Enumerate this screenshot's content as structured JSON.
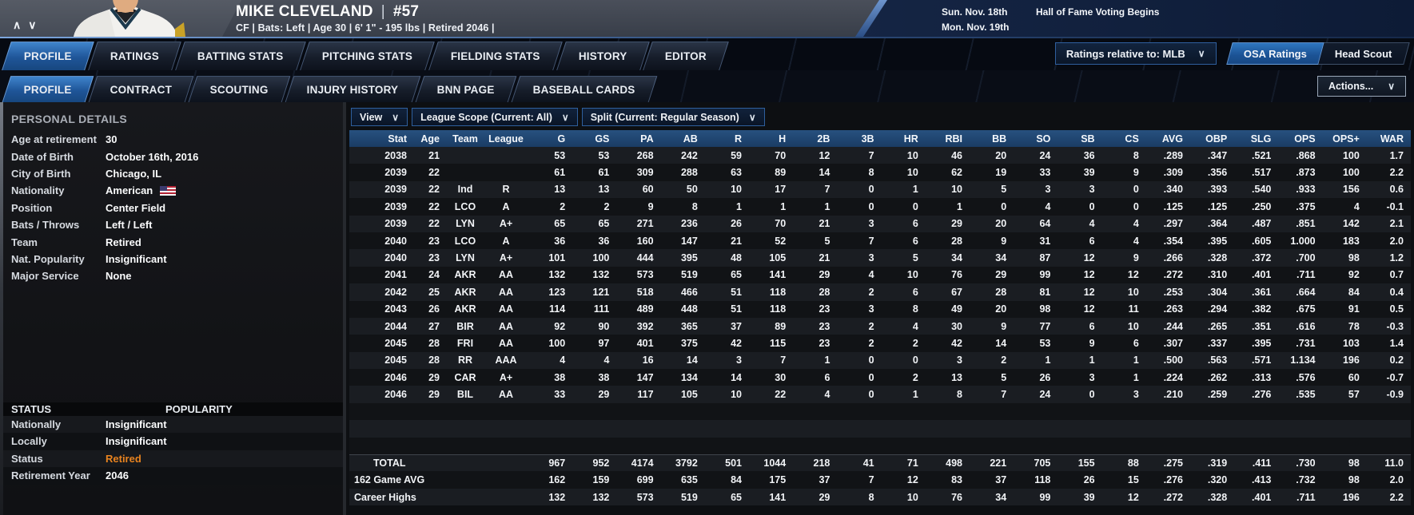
{
  "ui": {
    "chevron": "∨",
    "nav_up": "∧",
    "nav_down": "∨"
  },
  "colors": {
    "accent_blue": "#1f5598",
    "table_header_blue": "#1d3f6a",
    "status_orange": "#e8831f",
    "header_gray": "#4a4f5a",
    "header_navy": "#152544"
  },
  "header": {
    "player_name": "MIKE CLEVELAND",
    "separator": "|",
    "number": "#57",
    "subtitle": "CF | Bats: Left  |  Age 30  |  6' 1\" - 195 lbs  |  Retired 2046  |",
    "dates": [
      {
        "date": "Sun. Nov. 18th",
        "event": "Hall of Fame Voting Begins"
      },
      {
        "date": "Mon. Nov. 19th",
        "event": ""
      }
    ]
  },
  "main_tabs": {
    "items": [
      "PROFILE",
      "RATINGS",
      "BATTING STATS",
      "PITCHING STATS",
      "FIELDING STATS",
      "HISTORY",
      "EDITOR"
    ],
    "active": "PROFILE"
  },
  "header_controls": {
    "ratings_relative": "Ratings relative to: MLB",
    "osa_ratings": "OSA Ratings",
    "head_scout": "Head Scout"
  },
  "sub_tabs": {
    "items": [
      "PROFILE",
      "CONTRACT",
      "SCOUTING",
      "INJURY HISTORY",
      "BNN PAGE",
      "BASEBALL CARDS"
    ],
    "active": "PROFILE",
    "actions_label": "Actions..."
  },
  "personal_details": {
    "title": "PERSONAL DETAILS",
    "rows": [
      {
        "label": "Age at retirement",
        "value": "30"
      },
      {
        "label": "Date of Birth",
        "value": "October 16th, 2016"
      },
      {
        "label": "City of Birth",
        "value": "Chicago, IL"
      },
      {
        "label": "Nationality",
        "value": "American",
        "flag": "us-flag"
      },
      {
        "label": "Position",
        "value": "Center Field"
      },
      {
        "label": "Bats / Throws",
        "value": "Left / Left"
      },
      {
        "label": "Team",
        "value": "Retired"
      },
      {
        "label": "Nat. Popularity",
        "value": "Insignificant"
      },
      {
        "label": "Major Service",
        "value": "None"
      }
    ]
  },
  "status_section": {
    "title_left": "STATUS",
    "title_right": "POPULARITY",
    "rows": [
      {
        "label": "Nationally",
        "value": "Insignificant",
        "highlight": false
      },
      {
        "label": "Locally",
        "value": "Insignificant",
        "highlight": false
      },
      {
        "label": "Status",
        "value": "Retired",
        "highlight": true
      },
      {
        "label": "Retirement Year",
        "value": "2046",
        "highlight": false
      }
    ]
  },
  "filters": {
    "view": "View",
    "league_scope": "League Scope  (Current: All)",
    "split": "Split  (Current: Regular Season)"
  },
  "stats_table": {
    "columns": [
      "Stat",
      "Age",
      "Team",
      "League",
      "G",
      "GS",
      "PA",
      "AB",
      "R",
      "H",
      "2B",
      "3B",
      "HR",
      "RBI",
      "BB",
      "SO",
      "SB",
      "CS",
      "AVG",
      "OBP",
      "SLG",
      "OPS",
      "OPS+",
      "WAR"
    ],
    "rows": [
      [
        "2038",
        "21",
        "",
        "",
        "53",
        "53",
        "268",
        "242",
        "59",
        "70",
        "12",
        "7",
        "10",
        "46",
        "20",
        "24",
        "36",
        "8",
        ".289",
        ".347",
        ".521",
        ".868",
        "100",
        "1.7"
      ],
      [
        "2039",
        "22",
        "",
        "",
        "61",
        "61",
        "309",
        "288",
        "63",
        "89",
        "14",
        "8",
        "10",
        "62",
        "19",
        "33",
        "39",
        "9",
        ".309",
        ".356",
        ".517",
        ".873",
        "100",
        "2.2"
      ],
      [
        "2039",
        "22",
        "Ind",
        "R",
        "13",
        "13",
        "60",
        "50",
        "10",
        "17",
        "7",
        "0",
        "1",
        "10",
        "5",
        "3",
        "3",
        "0",
        ".340",
        ".393",
        ".540",
        ".933",
        "156",
        "0.6"
      ],
      [
        "2039",
        "22",
        "LCO",
        "A",
        "2",
        "2",
        "9",
        "8",
        "1",
        "1",
        "1",
        "0",
        "0",
        "1",
        "0",
        "4",
        "0",
        "0",
        ".125",
        ".125",
        ".250",
        ".375",
        "4",
        "-0.1"
      ],
      [
        "2039",
        "22",
        "LYN",
        "A+",
        "65",
        "65",
        "271",
        "236",
        "26",
        "70",
        "21",
        "3",
        "6",
        "29",
        "20",
        "64",
        "4",
        "4",
        ".297",
        ".364",
        ".487",
        ".851",
        "142",
        "2.1"
      ],
      [
        "2040",
        "23",
        "LCO",
        "A",
        "36",
        "36",
        "160",
        "147",
        "21",
        "52",
        "5",
        "7",
        "6",
        "28",
        "9",
        "31",
        "6",
        "4",
        ".354",
        ".395",
        ".605",
        "1.000",
        "183",
        "2.0"
      ],
      [
        "2040",
        "23",
        "LYN",
        "A+",
        "101",
        "100",
        "444",
        "395",
        "48",
        "105",
        "21",
        "3",
        "5",
        "34",
        "34",
        "87",
        "12",
        "9",
        ".266",
        ".328",
        ".372",
        ".700",
        "98",
        "1.2"
      ],
      [
        "2041",
        "24",
        "AKR",
        "AA",
        "132",
        "132",
        "573",
        "519",
        "65",
        "141",
        "29",
        "4",
        "10",
        "76",
        "29",
        "99",
        "12",
        "12",
        ".272",
        ".310",
        ".401",
        ".711",
        "92",
        "0.7"
      ],
      [
        "2042",
        "25",
        "AKR",
        "AA",
        "123",
        "121",
        "518",
        "466",
        "51",
        "118",
        "28",
        "2",
        "6",
        "67",
        "28",
        "81",
        "12",
        "10",
        ".253",
        ".304",
        ".361",
        ".664",
        "84",
        "0.4"
      ],
      [
        "2043",
        "26",
        "AKR",
        "AA",
        "114",
        "111",
        "489",
        "448",
        "51",
        "118",
        "23",
        "3",
        "8",
        "49",
        "20",
        "98",
        "12",
        "11",
        ".263",
        ".294",
        ".382",
        ".675",
        "91",
        "0.5"
      ],
      [
        "2044",
        "27",
        "BIR",
        "AA",
        "92",
        "90",
        "392",
        "365",
        "37",
        "89",
        "23",
        "2",
        "4",
        "30",
        "9",
        "77",
        "6",
        "10",
        ".244",
        ".265",
        ".351",
        ".616",
        "78",
        "-0.3"
      ],
      [
        "2045",
        "28",
        "FRI",
        "AA",
        "100",
        "97",
        "401",
        "375",
        "42",
        "115",
        "23",
        "2",
        "2",
        "42",
        "14",
        "53",
        "9",
        "6",
        ".307",
        ".337",
        ".395",
        ".731",
        "103",
        "1.4"
      ],
      [
        "2045",
        "28",
        "RR",
        "AAA",
        "4",
        "4",
        "16",
        "14",
        "3",
        "7",
        "1",
        "0",
        "0",
        "3",
        "2",
        "1",
        "1",
        "1",
        ".500",
        ".563",
        ".571",
        "1.134",
        "196",
        "0.2"
      ],
      [
        "2046",
        "29",
        "CAR",
        "A+",
        "38",
        "38",
        "147",
        "134",
        "14",
        "30",
        "6",
        "0",
        "2",
        "13",
        "5",
        "26",
        "3",
        "1",
        ".224",
        ".262",
        ".313",
        ".576",
        "60",
        "-0.7"
      ],
      [
        "2046",
        "29",
        "BIL",
        "AA",
        "33",
        "29",
        "117",
        "105",
        "10",
        "22",
        "4",
        "0",
        "1",
        "8",
        "7",
        "24",
        "0",
        "3",
        ".210",
        ".259",
        ".276",
        ".535",
        "57",
        "-0.9"
      ]
    ],
    "summary": [
      {
        "label": "TOTAL",
        "indent": 30,
        "values": [
          "967",
          "952",
          "4174",
          "3792",
          "501",
          "1044",
          "218",
          "41",
          "71",
          "498",
          "221",
          "705",
          "155",
          "88",
          ".275",
          ".319",
          ".411",
          ".730",
          "98",
          "11.0"
        ]
      },
      {
        "label": "162 Game AVG",
        "indent": 6,
        "values": [
          "162",
          "159",
          "699",
          "635",
          "84",
          "175",
          "37",
          "7",
          "12",
          "83",
          "37",
          "118",
          "26",
          "15",
          ".276",
          ".320",
          ".413",
          ".732",
          "98",
          "2.0"
        ]
      },
      {
        "label": "Career Highs",
        "indent": 6,
        "values": [
          "132",
          "132",
          "573",
          "519",
          "65",
          "141",
          "29",
          "8",
          "10",
          "76",
          "34",
          "99",
          "39",
          "12",
          ".272",
          ".328",
          ".401",
          ".711",
          "196",
          "2.2"
        ]
      }
    ]
  }
}
